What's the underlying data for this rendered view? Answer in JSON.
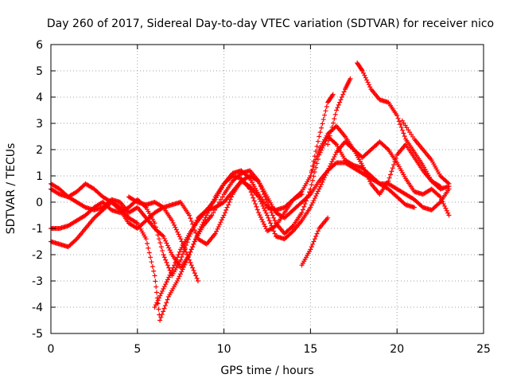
{
  "chart_data": {
    "type": "scatter",
    "title": "Day 260 of 2017, Sidereal Day-to-day VTEC variation (SDTVAR) for receiver nico",
    "xlabel": "GPS time / hours",
    "ylabel": "SDTVAR / TECUs",
    "xlim": [
      0,
      25
    ],
    "ylim": [
      -5,
      6
    ],
    "x_ticks": [
      "0",
      "5",
      "10",
      "15",
      "20",
      "25"
    ],
    "y_ticks": [
      "-5",
      "-4",
      "-3",
      "-2",
      "-1",
      "0",
      "1",
      "2",
      "3",
      "4",
      "5",
      "6"
    ],
    "x_tick_values": [
      0,
      5,
      10,
      15,
      20,
      25
    ],
    "y_tick_values": [
      -5,
      -4,
      -3,
      -2,
      -1,
      0,
      1,
      2,
      3,
      4,
      5,
      6
    ],
    "grid": true,
    "legend": "none",
    "marker": "plus",
    "series_color": "#ff0000",
    "series": [
      {
        "points": [
          [
            0,
            0.5
          ],
          [
            0.5,
            0.3
          ],
          [
            1,
            0.2
          ],
          [
            1.5,
            0.4
          ],
          [
            2,
            0.7
          ],
          [
            2.5,
            0.5
          ],
          [
            3,
            0.2
          ],
          [
            3.5,
            0.0
          ],
          [
            4,
            -0.3
          ],
          [
            4.5,
            -0.8
          ],
          [
            5,
            -1.0
          ],
          [
            5.5,
            -0.7
          ],
          [
            6,
            -0.4
          ],
          [
            6.5,
            -0.2
          ],
          [
            7,
            -0.1
          ],
          [
            7.5,
            0.0
          ],
          [
            8,
            -0.5
          ],
          [
            8.5,
            -1.4
          ],
          [
            9,
            -1.6
          ],
          [
            9.5,
            -1.2
          ],
          [
            10,
            -0.5
          ],
          [
            10.5,
            0.3
          ],
          [
            11,
            0.8
          ],
          [
            11.5,
            1.0
          ],
          [
            12,
            0.8
          ],
          [
            12.5,
            0.2
          ],
          [
            13,
            -0.4
          ],
          [
            13.5,
            -0.6
          ],
          [
            14,
            -0.3
          ],
          [
            14.5,
            0.0
          ],
          [
            15,
            0.3
          ],
          [
            15.5,
            0.8
          ],
          [
            16,
            1.2
          ],
          [
            16.5,
            1.5
          ],
          [
            17,
            1.5
          ],
          [
            17.5,
            1.3
          ],
          [
            18,
            1.1
          ],
          [
            18.5,
            0.9
          ],
          [
            19,
            0.7
          ],
          [
            19.5,
            0.7
          ],
          [
            20,
            0.5
          ],
          [
            20.5,
            0.3
          ],
          [
            21,
            0.1
          ],
          [
            21.5,
            -0.2
          ],
          [
            22,
            -0.3
          ],
          [
            22.5,
            0.0
          ],
          [
            23,
            0.5
          ]
        ]
      },
      {
        "points": [
          [
            0,
            -1.0
          ],
          [
            0.5,
            -1.0
          ],
          [
            1,
            -0.9
          ],
          [
            1.5,
            -0.7
          ],
          [
            2,
            -0.5
          ],
          [
            2.5,
            -0.2
          ],
          [
            3,
            0.0
          ],
          [
            3.5,
            -0.3
          ],
          [
            4,
            -0.4
          ],
          [
            4.5,
            -0.2
          ],
          [
            5,
            0.1
          ],
          [
            5.5,
            -0.2
          ],
          [
            6,
            -0.8
          ],
          [
            6.5,
            -2.0
          ],
          [
            7,
            -2.8
          ],
          [
            7.5,
            -2.2
          ],
          [
            8,
            -1.3
          ],
          [
            8.5,
            -0.6
          ],
          [
            9,
            -0.3
          ],
          [
            9.5,
            -0.2
          ],
          [
            10,
            0.0
          ],
          [
            10.5,
            0.4
          ],
          [
            11,
            0.8
          ],
          [
            11.5,
            0.6
          ],
          [
            12,
            0.2
          ],
          [
            12.5,
            -0.5
          ],
          [
            13,
            -1.3
          ],
          [
            13.5,
            -1.4
          ],
          [
            14,
            -1.1
          ],
          [
            14.5,
            -0.7
          ],
          [
            15,
            -0.2
          ],
          [
            15.5,
            0.5
          ],
          [
            16,
            1.2
          ],
          [
            16.5,
            1.9
          ],
          [
            17,
            2.3
          ],
          [
            17.5,
            2.0
          ],
          [
            18,
            1.4
          ],
          [
            18.5,
            0.7
          ],
          [
            19,
            0.3
          ],
          [
            19.5,
            0.8
          ],
          [
            20,
            1.8
          ],
          [
            20.5,
            2.2
          ],
          [
            21,
            1.7
          ],
          [
            21.5,
            1.2
          ],
          [
            22,
            0.8
          ],
          [
            22.5,
            0.6
          ]
        ]
      },
      {
        "points": [
          [
            0,
            -1.5
          ],
          [
            0.5,
            -1.6
          ],
          [
            1,
            -1.7
          ],
          [
            1.5,
            -1.4
          ],
          [
            2,
            -1.0
          ],
          [
            2.5,
            -0.6
          ],
          [
            3,
            -0.3
          ],
          [
            3.5,
            0.0
          ],
          [
            4,
            -0.2
          ],
          [
            4.5,
            -0.6
          ],
          [
            5,
            -0.8
          ],
          [
            5.5,
            -1.4
          ],
          [
            6,
            -2.8
          ],
          [
            6.3,
            -4.5
          ],
          [
            6.8,
            -3.6
          ],
          [
            7.3,
            -3.0
          ],
          [
            7.8,
            -2.3
          ],
          [
            8.3,
            -1.5
          ],
          [
            8.8,
            -0.9
          ],
          [
            9.3,
            -0.5
          ],
          [
            10,
            0.3
          ],
          [
            10.5,
            0.8
          ],
          [
            11,
            1.1
          ],
          [
            11.5,
            1.2
          ],
          [
            12,
            0.8
          ],
          [
            12.5,
            0.0
          ],
          [
            13,
            -0.8
          ],
          [
            13.5,
            -1.2
          ],
          [
            14,
            -0.9
          ],
          [
            14.5,
            -0.4
          ],
          [
            15,
            0.5
          ],
          [
            15.5,
            1.8
          ],
          [
            16,
            2.5
          ],
          [
            16.5,
            2.2
          ],
          [
            17,
            1.6
          ],
          [
            17.5,
            1.4
          ],
          [
            18,
            1.3
          ],
          [
            18.5,
            1.0
          ],
          [
            19,
            0.7
          ],
          [
            19.5,
            0.5
          ],
          [
            20,
            0.2
          ],
          [
            20.5,
            -0.1
          ],
          [
            21,
            -0.2
          ]
        ]
      },
      {
        "points": [
          [
            0,
            0.7
          ],
          [
            0.5,
            0.5
          ],
          [
            1,
            0.2
          ],
          [
            1.5,
            0.0
          ],
          [
            2,
            -0.2
          ],
          [
            2.5,
            -0.3
          ],
          [
            3,
            -0.2
          ],
          [
            3.5,
            0.1
          ],
          [
            4,
            0.0
          ],
          [
            4.5,
            -0.4
          ],
          [
            5,
            -0.2
          ],
          [
            5.5,
            -0.6
          ],
          [
            6,
            -1.0
          ],
          [
            6.5,
            -1.3
          ],
          [
            7,
            -2.0
          ],
          [
            7.5,
            -2.5
          ],
          [
            8,
            -2.0
          ],
          [
            8.5,
            -1.2
          ],
          [
            9,
            -0.5
          ],
          [
            9.5,
            0.2
          ],
          [
            10,
            0.7
          ],
          [
            10.5,
            1.0
          ],
          [
            11,
            0.9
          ],
          [
            11.5,
            0.5
          ],
          [
            12,
            -0.4
          ],
          [
            12.5,
            -1.1
          ],
          [
            13,
            -0.9
          ],
          [
            13.5,
            -0.4
          ],
          [
            14,
            0.1
          ],
          [
            14.5,
            0.4
          ],
          [
            15,
            1.0
          ],
          [
            15.5,
            2.0
          ],
          [
            16,
            2.6
          ],
          [
            16.5,
            2.9
          ],
          [
            17,
            2.5
          ],
          [
            17.5,
            2.0
          ],
          [
            18,
            1.7
          ],
          [
            18.5,
            2.0
          ],
          [
            19,
            2.3
          ],
          [
            19.5,
            2.0
          ],
          [
            20,
            1.5
          ],
          [
            20.5,
            0.9
          ],
          [
            21,
            0.4
          ],
          [
            21.5,
            0.3
          ],
          [
            22,
            0.5
          ],
          [
            22.5,
            0.2
          ],
          [
            23,
            -0.5
          ]
        ]
      },
      {
        "points": [
          [
            6,
            -4.0
          ],
          [
            6.5,
            -3.3
          ],
          [
            7,
            -2.6
          ],
          [
            7.5,
            -1.8
          ],
          [
            8,
            -1.2
          ],
          [
            8.5,
            -0.7
          ],
          [
            9,
            -0.3
          ],
          [
            9.5,
            0.1
          ],
          [
            10,
            0.7
          ],
          [
            10.5,
            1.1
          ],
          [
            11,
            1.2
          ],
          [
            11.5,
            0.9
          ],
          [
            12,
            0.3
          ],
          [
            12.5,
            -0.2
          ],
          [
            13,
            -0.3
          ],
          [
            13.5,
            -0.2
          ],
          [
            14,
            0.1
          ],
          [
            14.5,
            0.3
          ]
        ]
      },
      {
        "points": [
          [
            8.5,
            -3.0
          ],
          [
            8,
            -2.2
          ],
          [
            7.5,
            -1.4
          ],
          [
            7,
            -0.7
          ],
          [
            6.5,
            -0.2
          ],
          [
            6,
            0.0
          ],
          [
            5.5,
            -0.1
          ],
          [
            5,
            0.0
          ],
          [
            4.5,
            0.2
          ]
        ]
      },
      {
        "points": [
          [
            14.5,
            -2.4
          ],
          [
            15,
            -1.8
          ],
          [
            15.5,
            -1.0
          ],
          [
            16,
            -0.6
          ]
        ]
      },
      {
        "points": [
          [
            15,
            1.0
          ],
          [
            15.5,
            2.5
          ],
          [
            16,
            3.8
          ],
          [
            16.3,
            4.1
          ]
        ]
      },
      {
        "points": [
          [
            16,
            2.2
          ],
          [
            16.5,
            3.5
          ],
          [
            17,
            4.3
          ],
          [
            17.3,
            4.7
          ]
        ]
      },
      {
        "points": [
          [
            17.7,
            5.3
          ],
          [
            18,
            5.0
          ],
          [
            18.5,
            4.3
          ],
          [
            19,
            3.9
          ],
          [
            19.5,
            3.8
          ],
          [
            20,
            3.3
          ],
          [
            20.5,
            2.4
          ],
          [
            21,
            1.9
          ],
          [
            21.5,
            1.4
          ],
          [
            22,
            0.8
          ],
          [
            22.5,
            0.5
          ],
          [
            23,
            0.6
          ]
        ]
      },
      {
        "points": [
          [
            20.3,
            3.1
          ],
          [
            21,
            2.4
          ],
          [
            21.5,
            2.0
          ],
          [
            22,
            1.6
          ],
          [
            22.5,
            1.0
          ],
          [
            23,
            0.7
          ]
        ]
      }
    ]
  }
}
